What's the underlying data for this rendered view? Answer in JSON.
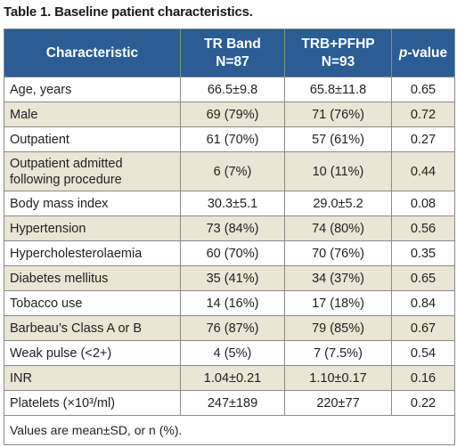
{
  "caption": "Table 1. Baseline patient characteristics.",
  "header": {
    "col1": "Characteristic",
    "col2_line1": "TR Band",
    "col2_line2": "N=87",
    "col3_line1": "TRB+PFHP",
    "col3_line2": "N=93",
    "col4_p": "p",
    "col4_rest": "-value"
  },
  "rows": [
    {
      "label": "Age, years",
      "trband": "66.5±9.8",
      "trbpfhp": "65.8±11.8",
      "pvalue": "0.65"
    },
    {
      "label": "Male",
      "trband": "69 (79%)",
      "trbpfhp": "71 (76%)",
      "pvalue": "0.72"
    },
    {
      "label": "Outpatient",
      "trband": "61 (70%)",
      "trbpfhp": "57 (61%)",
      "pvalue": "0.27"
    },
    {
      "label_line1": "Outpatient admitted",
      "label_line2": "following procedure",
      "trband": "6 (7%)",
      "trbpfhp": "10 (11%)",
      "pvalue": "0.44"
    },
    {
      "label": "Body mass index",
      "trband": "30.3±5.1",
      "trbpfhp": "29.0±5.2",
      "pvalue": "0.08"
    },
    {
      "label": "Hypertension",
      "trband": "73 (84%)",
      "trbpfhp": "74 (80%)",
      "pvalue": "0.56"
    },
    {
      "label": "Hypercholesterolaemia",
      "trband": "60 (70%)",
      "trbpfhp": "70 (76%)",
      "pvalue": "0.35"
    },
    {
      "label": "Diabetes mellitus",
      "trband": "35 (41%)",
      "trbpfhp": "34 (37%)",
      "pvalue": "0.65"
    },
    {
      "label": "Tobacco use",
      "trband": "14 (16%)",
      "trbpfhp": "17 (18%)",
      "pvalue": "0.84"
    },
    {
      "label": "Barbeau’s Class A or B",
      "trband": "76 (87%)",
      "trbpfhp": "79 (85%)",
      "pvalue": "0.67"
    },
    {
      "label": "Weak pulse (<2+)",
      "trband": "4 (5%)",
      "trbpfhp": "7 (7.5%)",
      "pvalue": "0.54"
    },
    {
      "label": "INR",
      "trband": "1.04±0.21",
      "trbpfhp": "1.10±0.17",
      "pvalue": "0.16"
    },
    {
      "label": "Platelets (×10³/ml)",
      "trband": "247±189",
      "trbpfhp": "220±77",
      "pvalue": "0.22"
    }
  ],
  "footnote": "Values are mean±SD, or n (%).",
  "colors": {
    "header_bg": "#2b5c93",
    "shade_bg": "#eae5d4",
    "border": "#8a8a8a"
  }
}
